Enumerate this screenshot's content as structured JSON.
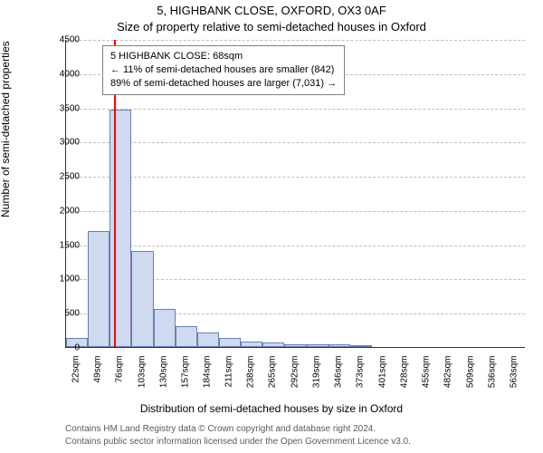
{
  "title_line1": "5, HIGHBANK CLOSE, OXFORD, OX3 0AF",
  "title_line2": "Size of property relative to semi-detached houses in Oxford",
  "ylabel": "Number of semi-detached properties",
  "xlabel": "Distribution of semi-detached houses by size in Oxford",
  "footer_line1": "Contains HM Land Registry data © Crown copyright and database right 2024.",
  "footer_line2": "Contains public sector information licensed under the Open Government Licence v3.0.",
  "infobox": {
    "line1": "5 HIGHBANK CLOSE: 68sqm",
    "line2": "← 11% of semi-detached houses are smaller (842)",
    "line3": "89% of semi-detached houses are larger (7,031) →"
  },
  "chart": {
    "type": "histogram",
    "plot_bg": "#ffffff",
    "grid_color": "#bfbfbf",
    "grid_dashed": true,
    "bar_fill": "#cfd9ef",
    "bar_border": "#6b7fb5",
    "highlight_line_color": "#ff0000",
    "highlight_x_value": 68,
    "title_fontsize": 13,
    "label_fontsize": 12,
    "tick_fontsize": 10,
    "footer_fontsize": 10,
    "footer_color": "#5a5a5a",
    "ylim": [
      0,
      4500
    ],
    "ytick_step": 500,
    "x_tick_labels": [
      "22sqm",
      "49sqm",
      "76sqm",
      "103sqm",
      "130sqm",
      "157sqm",
      "184sqm",
      "211sqm",
      "238sqm",
      "265sqm",
      "292sqm",
      "319sqm",
      "346sqm",
      "373sqm",
      "401sqm",
      "428sqm",
      "455sqm",
      "482sqm",
      "509sqm",
      "536sqm",
      "563sqm"
    ],
    "x_tick_values": [
      22,
      49,
      76,
      103,
      130,
      157,
      184,
      211,
      238,
      265,
      292,
      319,
      346,
      373,
      401,
      428,
      455,
      482,
      509,
      536,
      563
    ],
    "x_range": [
      8.5,
      576.5
    ],
    "bin_width_value": 27,
    "bins": [
      {
        "x_start": 8.5,
        "count": 130
      },
      {
        "x_start": 35.5,
        "count": 1700
      },
      {
        "x_start": 62.5,
        "count": 3470
      },
      {
        "x_start": 89.5,
        "count": 1400
      },
      {
        "x_start": 116.5,
        "count": 560
      },
      {
        "x_start": 143.5,
        "count": 300
      },
      {
        "x_start": 170.5,
        "count": 210
      },
      {
        "x_start": 197.5,
        "count": 130
      },
      {
        "x_start": 224.5,
        "count": 80
      },
      {
        "x_start": 251.5,
        "count": 60
      },
      {
        "x_start": 278.5,
        "count": 45
      },
      {
        "x_start": 305.5,
        "count": 40
      },
      {
        "x_start": 332.5,
        "count": 40
      },
      {
        "x_start": 359.5,
        "count": 25
      },
      {
        "x_start": 386.5,
        "count": 0
      },
      {
        "x_start": 413.5,
        "count": 0
      },
      {
        "x_start": 440.5,
        "count": 0
      },
      {
        "x_start": 467.5,
        "count": 0
      },
      {
        "x_start": 494.5,
        "count": 0
      },
      {
        "x_start": 521.5,
        "count": 0
      },
      {
        "x_start": 548.5,
        "count": 0
      }
    ]
  }
}
